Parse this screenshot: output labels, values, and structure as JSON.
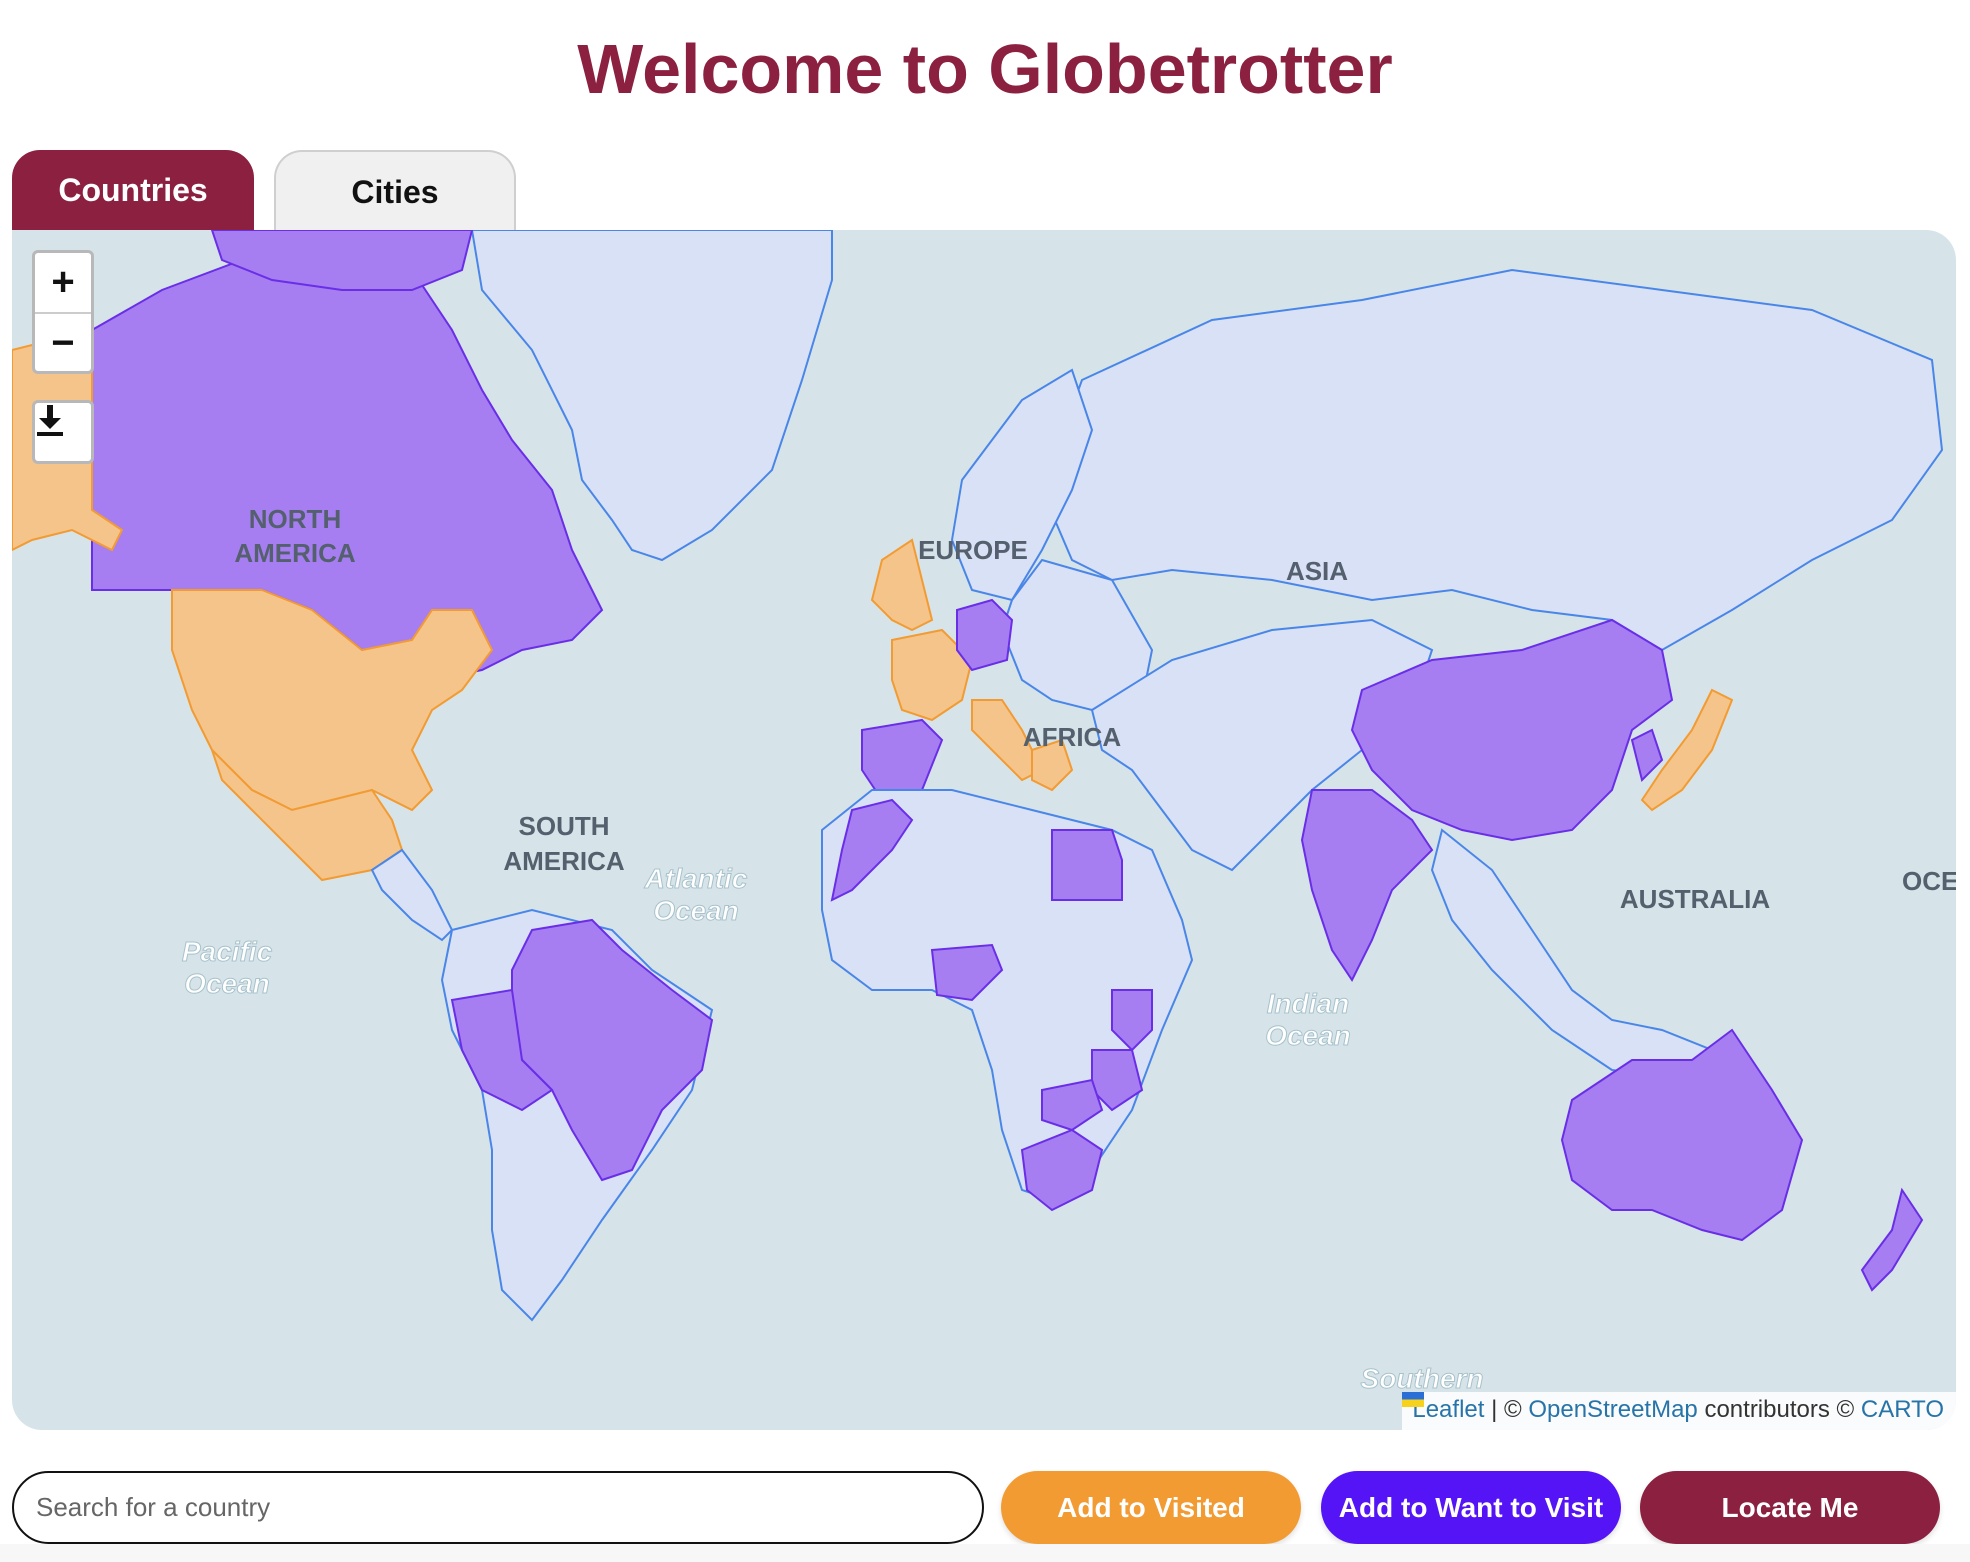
{
  "title": "Welcome to Globetrotter",
  "tabs": [
    {
      "label": "Countries",
      "active": true
    },
    {
      "label": "Cities",
      "active": false
    }
  ],
  "map": {
    "zoom_in": "+",
    "zoom_out": "−",
    "download_icon": "download-icon",
    "colors": {
      "visited": "#f5c48a",
      "want_to_visit": "#a67ef2",
      "unmarked": "#d9e1f6",
      "water": "#d6e4e9",
      "border": "#4a86e8"
    },
    "labels": {
      "north_america": [
        "NORTH",
        "AMERICA"
      ],
      "south_america": [
        "SOUTH",
        "AMERICA"
      ],
      "europe": "EUROPE",
      "asia": "ASIA",
      "africa": "AFRICA",
      "australia": "AUSTRALIA",
      "oceania": "OCEANIA",
      "atlantic": [
        "Atlantic",
        "Ocean"
      ],
      "pacific": [
        "Pacific",
        "Ocean"
      ],
      "indian": [
        "Indian",
        "Ocean"
      ],
      "southern": "Southern"
    },
    "attribution": {
      "leaflet": "Leaflet",
      "sep1": " | © ",
      "osm": "OpenStreetMap",
      "contributors": " contributors © ",
      "carto": "CARTO"
    }
  },
  "search": {
    "placeholder": "Search for a country",
    "value": ""
  },
  "buttons": {
    "add_visited": "Add to Visited",
    "add_want": "Add to Want to Visit",
    "locate": "Locate Me"
  }
}
